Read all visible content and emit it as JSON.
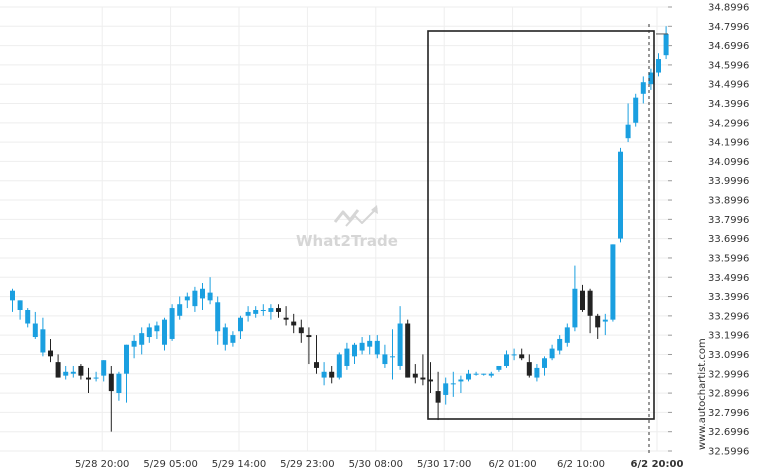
{
  "chart_data": {
    "type": "candlestick",
    "title": "",
    "xlabel": "",
    "ylabel": "",
    "ylim": [
      32.5996,
      34.8996
    ],
    "y_ticks": [
      "34.8996",
      "34.7996",
      "34.6996",
      "34.5996",
      "34.4996",
      "34.3996",
      "34.2996",
      "34.1996",
      "34.0996",
      "33.9996",
      "33.8996",
      "33.7996",
      "33.6996",
      "33.5996",
      "33.4996",
      "33.3996",
      "33.2996",
      "33.1996",
      "33.0996",
      "32.9996",
      "32.8996",
      "32.7996",
      "32.6996",
      "32.5996"
    ],
    "x_ticks": [
      {
        "label": "5/28 20:00",
        "index": 12
      },
      {
        "label": "5/29 05:00",
        "index": 21
      },
      {
        "label": "5/29 14:00",
        "index": 30
      },
      {
        "label": "5/29 23:00",
        "index": 39
      },
      {
        "label": "5/30 08:00",
        "index": 48
      },
      {
        "label": "5/30 17:00",
        "index": 57
      },
      {
        "label": "6/2 01:00",
        "index": 66
      },
      {
        "label": "6/2 10:00",
        "index": 75
      },
      {
        "label": "6/2 20:00",
        "index": 85,
        "highlight": true
      }
    ],
    "grid": true,
    "up_color": "#1a9fe0",
    "down_color": "#222222",
    "candles": [
      [
        33.38,
        33.44,
        33.32,
        33.43
      ],
      [
        33.33,
        33.38,
        33.28,
        33.38
      ],
      [
        33.26,
        33.34,
        33.24,
        33.33
      ],
      [
        33.19,
        33.32,
        33.18,
        33.26
      ],
      [
        33.11,
        33.29,
        33.09,
        33.23
      ],
      [
        33.12,
        33.18,
        33.06,
        33.09
      ],
      [
        33.06,
        33.1,
        32.98,
        32.98
      ],
      [
        32.99,
        33.04,
        32.97,
        33.01
      ],
      [
        33.0,
        33.04,
        32.98,
        33.01
      ],
      [
        33.04,
        33.05,
        32.97,
        32.99
      ],
      [
        32.98,
        33.03,
        32.9,
        32.97
      ],
      [
        32.98,
        33.01,
        32.96,
        32.98
      ],
      [
        32.99,
        33.07,
        32.96,
        33.07
      ],
      [
        33.0,
        33.04,
        32.7,
        32.91
      ],
      [
        32.9,
        33.01,
        32.86,
        33.0
      ],
      [
        33.0,
        33.15,
        32.85,
        33.15
      ],
      [
        33.14,
        33.2,
        33.08,
        33.17
      ],
      [
        33.15,
        33.24,
        33.1,
        33.21
      ],
      [
        33.19,
        33.26,
        33.16,
        33.24
      ],
      [
        33.22,
        33.27,
        33.18,
        33.25
      ],
      [
        33.15,
        33.29,
        33.12,
        33.28
      ],
      [
        33.18,
        33.36,
        33.17,
        33.34
      ],
      [
        33.3,
        33.4,
        33.28,
        33.36
      ],
      [
        33.38,
        33.42,
        33.34,
        33.4
      ],
      [
        33.35,
        33.45,
        33.32,
        33.43
      ],
      [
        33.39,
        33.47,
        33.33,
        33.44
      ],
      [
        33.38,
        33.5,
        33.36,
        33.42
      ],
      [
        33.22,
        33.4,
        33.15,
        33.37
      ],
      [
        33.15,
        33.26,
        33.12,
        33.24
      ],
      [
        33.16,
        33.22,
        33.14,
        33.2
      ],
      [
        33.22,
        33.3,
        33.18,
        33.29
      ],
      [
        33.3,
        33.35,
        33.27,
        33.32
      ],
      [
        33.31,
        33.35,
        33.29,
        33.33
      ],
      [
        33.33,
        33.36,
        33.3,
        33.33
      ],
      [
        33.32,
        33.36,
        33.28,
        33.34
      ],
      [
        33.34,
        33.36,
        33.29,
        33.32
      ],
      [
        33.29,
        33.35,
        33.25,
        33.28
      ],
      [
        33.27,
        33.31,
        33.21,
        33.25
      ],
      [
        33.24,
        33.28,
        33.16,
        33.21
      ],
      [
        33.2,
        33.24,
        33.05,
        33.19
      ],
      [
        33.06,
        33.2,
        33.0,
        33.03
      ],
      [
        32.98,
        33.06,
        32.94,
        33.01
      ],
      [
        33.01,
        33.04,
        32.95,
        32.98
      ],
      [
        32.98,
        33.11,
        32.97,
        33.1
      ],
      [
        33.04,
        33.16,
        33.02,
        33.13
      ],
      [
        33.09,
        33.16,
        33.05,
        33.15
      ],
      [
        33.12,
        33.19,
        33.1,
        33.16
      ],
      [
        33.14,
        33.2,
        33.1,
        33.17
      ],
      [
        33.1,
        33.2,
        33.08,
        33.17
      ],
      [
        33.05,
        33.15,
        33.03,
        33.1
      ],
      [
        33.09,
        33.23,
        32.97,
        33.09
      ],
      [
        33.04,
        33.35,
        33.02,
        33.26
      ],
      [
        33.26,
        33.28,
        32.98,
        32.98
      ],
      [
        33.0,
        33.05,
        32.95,
        32.98
      ],
      [
        32.98,
        33.1,
        32.94,
        32.97
      ],
      [
        32.97,
        33.06,
        32.9,
        32.96
      ],
      [
        32.91,
        33.01,
        32.76,
        32.85
      ],
      [
        32.89,
        32.98,
        32.84,
        32.95
      ],
      [
        32.95,
        33.01,
        32.88,
        32.95
      ],
      [
        32.96,
        32.99,
        32.9,
        32.97
      ],
      [
        32.97,
        33.02,
        32.96,
        33.0
      ],
      [
        33.0,
        33.01,
        32.99,
        33.0
      ],
      [
        33.0,
        33.0,
        32.99,
        33.0
      ],
      [
        32.99,
        33.01,
        32.98,
        33.0
      ],
      [
        33.02,
        33.04,
        33.01,
        33.04
      ],
      [
        33.04,
        33.12,
        33.03,
        33.1
      ],
      [
        33.1,
        33.13,
        33.07,
        33.1
      ],
      [
        33.1,
        33.13,
        33.07,
        33.08
      ],
      [
        33.06,
        33.1,
        32.98,
        32.99
      ],
      [
        32.98,
        33.05,
        32.96,
        33.03
      ],
      [
        33.03,
        33.09,
        32.99,
        33.08
      ],
      [
        33.08,
        33.15,
        33.07,
        33.13
      ],
      [
        33.12,
        33.2,
        33.1,
        33.18
      ],
      [
        33.16,
        33.26,
        33.14,
        33.24
      ],
      [
        33.24,
        33.56,
        33.22,
        33.44
      ],
      [
        33.43,
        33.46,
        33.32,
        33.33
      ],
      [
        33.43,
        33.44,
        33.21,
        33.3
      ],
      [
        33.3,
        33.31,
        33.18,
        33.24
      ],
      [
        33.27,
        33.31,
        33.2,
        33.28
      ],
      [
        33.28,
        33.67,
        33.27,
        33.67
      ],
      [
        33.7,
        34.17,
        33.68,
        34.15
      ],
      [
        34.22,
        34.4,
        34.2,
        34.29
      ],
      [
        34.3,
        34.45,
        34.28,
        34.43
      ],
      [
        34.45,
        34.54,
        34.4,
        34.51
      ],
      [
        34.5,
        34.58,
        34.47,
        34.56
      ],
      [
        34.56,
        34.66,
        34.54,
        34.63
      ],
      [
        34.65,
        34.8,
        34.63,
        34.76
      ]
    ]
  },
  "watermark": "What2Trade",
  "sidebar_text": "www.autochartist.com",
  "colors": {
    "pattern_box": "#222222",
    "grid": "#eeeeee",
    "watermark": "#d6d6d6"
  }
}
